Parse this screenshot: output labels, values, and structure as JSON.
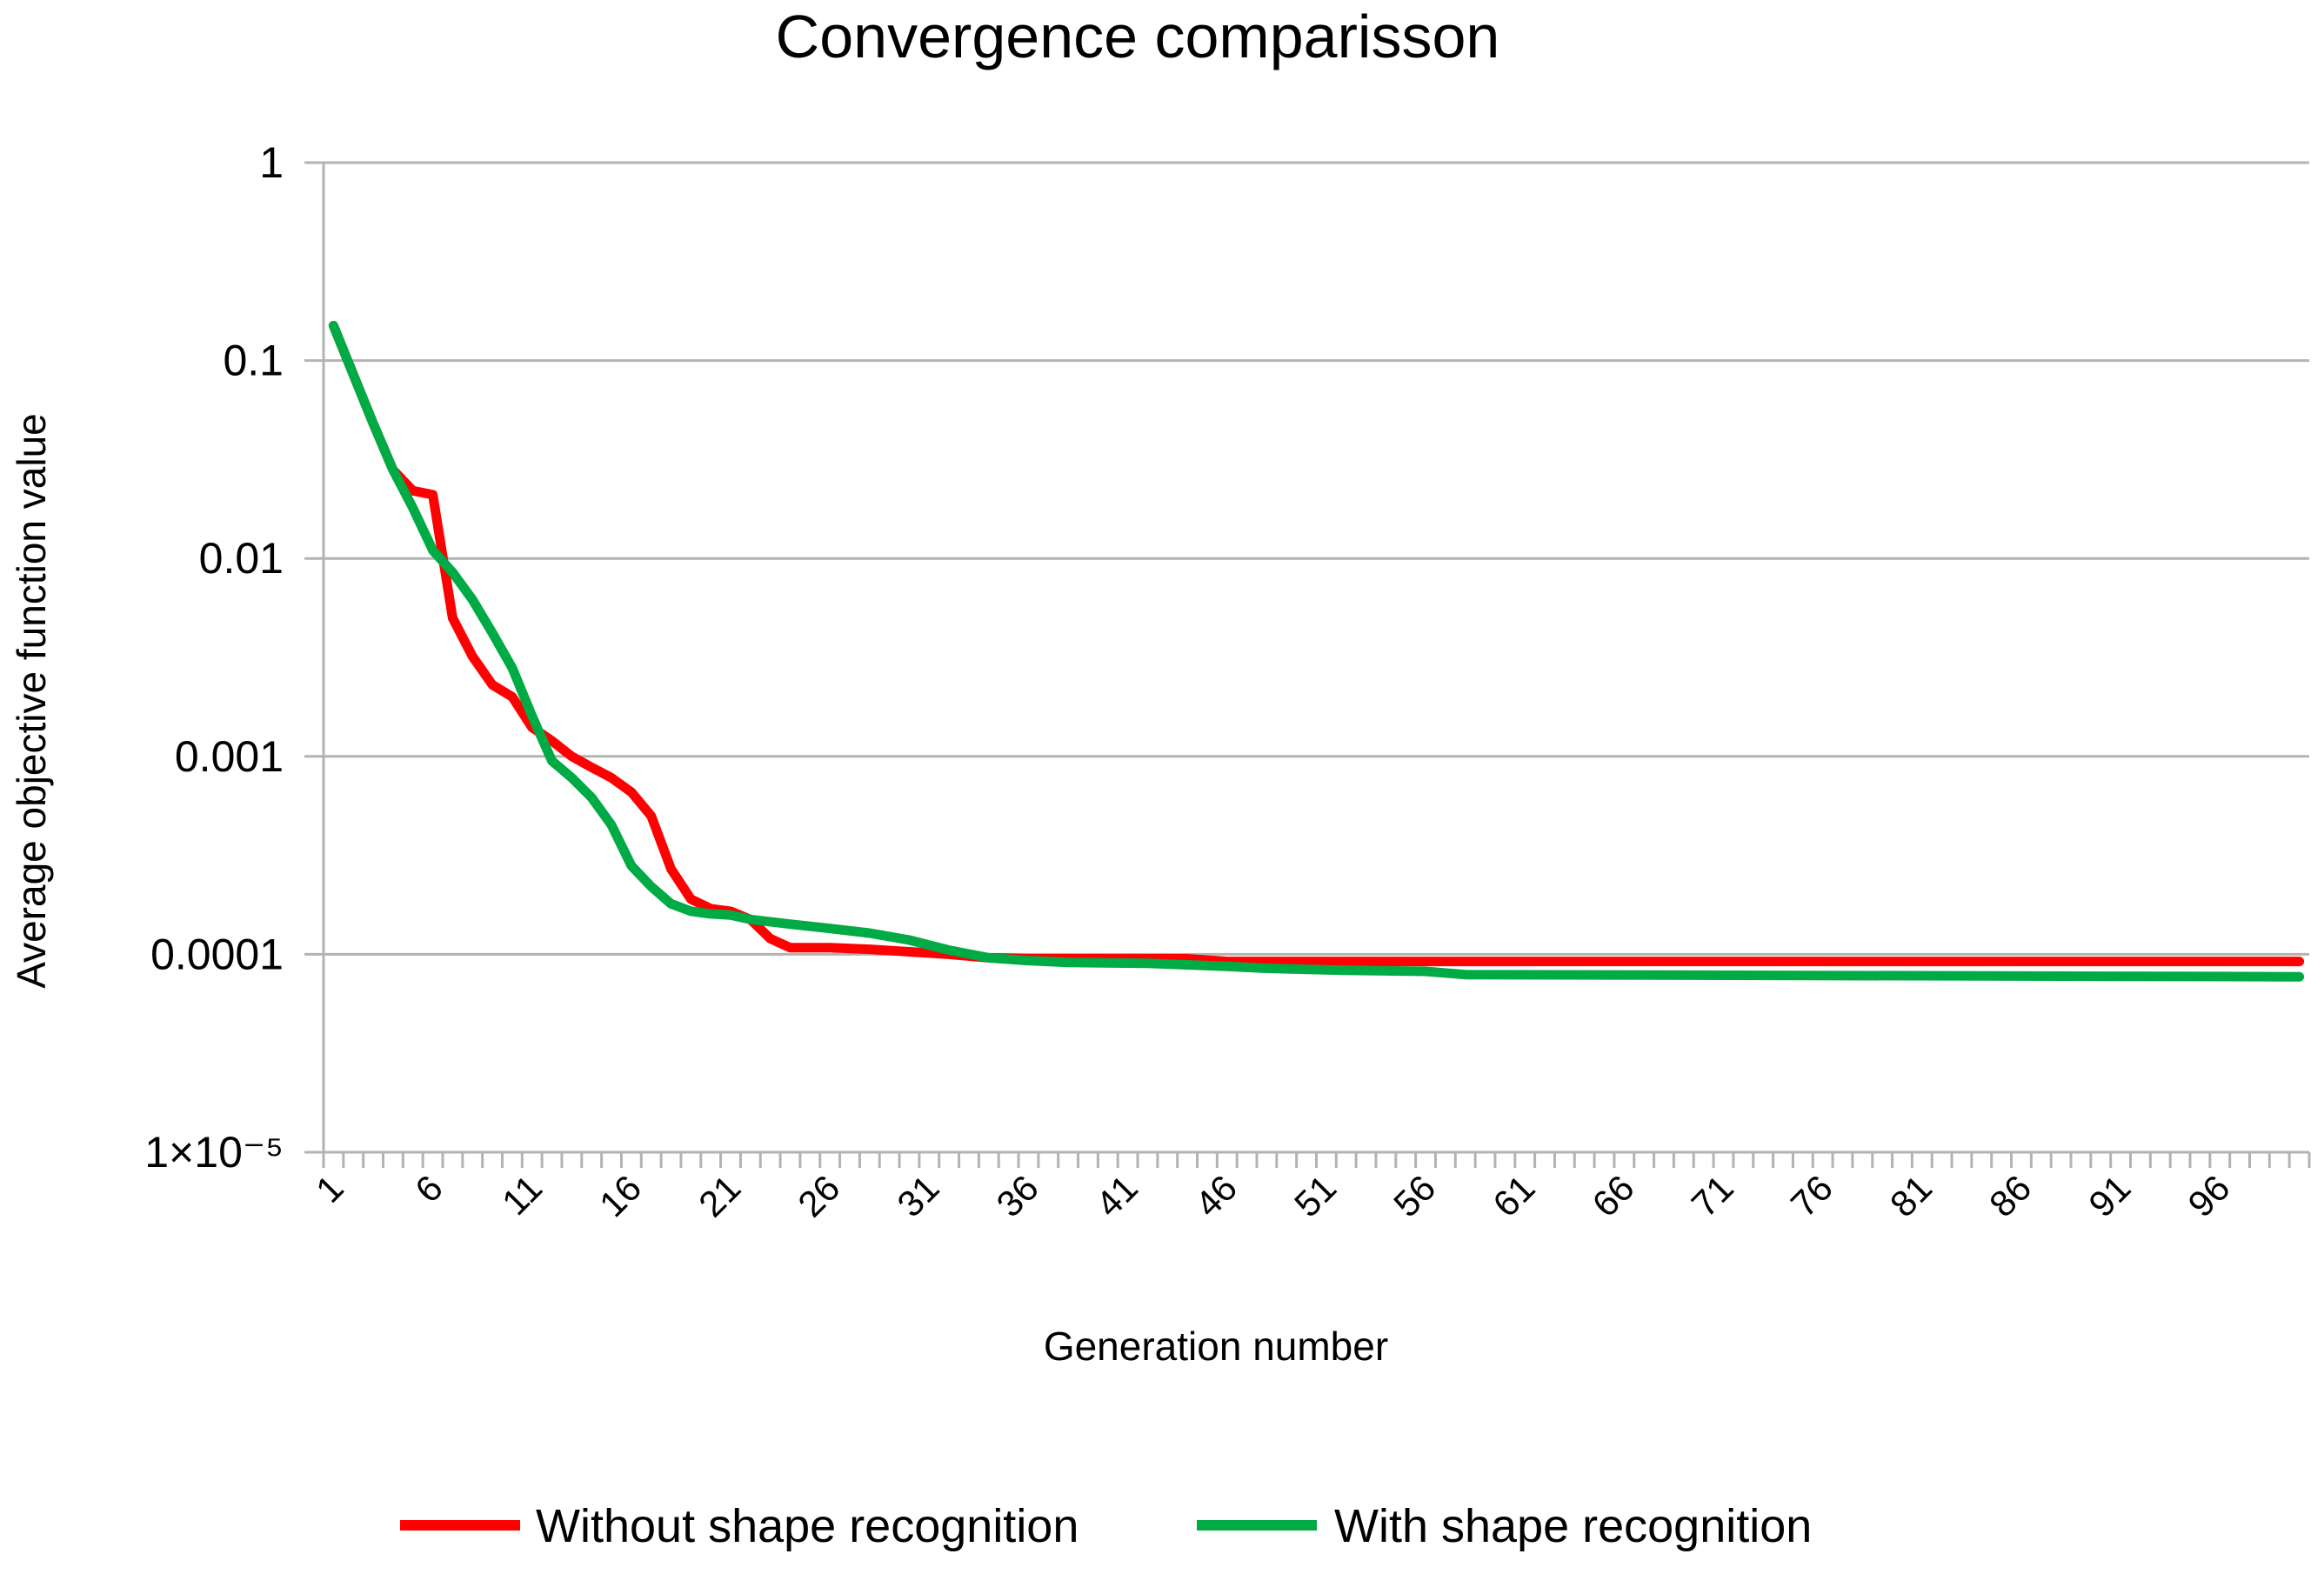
{
  "chart_data": {
    "type": "line",
    "title": "Convergence comparisson",
    "xlabel": "Generation number",
    "ylabel": "Average objective function value",
    "yscale": "log",
    "ylim": [
      1e-05,
      1
    ],
    "xlim": [
      1,
      100
    ],
    "y_ticks": [
      {
        "value": 1,
        "label": "1"
      },
      {
        "value": 0.1,
        "label": "0.1"
      },
      {
        "value": 0.01,
        "label": "0.01"
      },
      {
        "value": 0.001,
        "label": "0.001"
      },
      {
        "value": 0.0001,
        "label": "0.0001"
      },
      {
        "value": 1e-05,
        "label": "1×10⁻⁵"
      }
    ],
    "x_tick_labels": [
      {
        "value": 1,
        "label": "1"
      },
      {
        "value": 6,
        "label": "6"
      },
      {
        "value": 11,
        "label": "11"
      },
      {
        "value": 16,
        "label": "16"
      },
      {
        "value": 21,
        "label": "21"
      },
      {
        "value": 26,
        "label": "26"
      },
      {
        "value": 31,
        "label": "31"
      },
      {
        "value": 36,
        "label": "36"
      },
      {
        "value": 41,
        "label": "41"
      },
      {
        "value": 46,
        "label": "46"
      },
      {
        "value": 51,
        "label": "51"
      },
      {
        "value": 56,
        "label": "56"
      },
      {
        "value": 61,
        "label": "61"
      },
      {
        "value": 66,
        "label": "66"
      },
      {
        "value": 71,
        "label": "71"
      },
      {
        "value": 76,
        "label": "76"
      },
      {
        "value": 81,
        "label": "81"
      },
      {
        "value": 86,
        "label": "86"
      },
      {
        "value": 91,
        "label": "91"
      },
      {
        "value": 96,
        "label": "96"
      }
    ],
    "legend_position": "bottom",
    "series": [
      {
        "name": "Without shape recognition",
        "color": "#ff0000",
        "points": [
          [
            1,
            0.15
          ],
          [
            2,
            0.085
          ],
          [
            3,
            0.048
          ],
          [
            4,
            0.028
          ],
          [
            5,
            0.022
          ],
          [
            6,
            0.021
          ],
          [
            7,
            0.005
          ],
          [
            8,
            0.0032
          ],
          [
            9,
            0.0023
          ],
          [
            10,
            0.002
          ],
          [
            11,
            0.0014
          ],
          [
            12,
            0.0012
          ],
          [
            13,
            0.001
          ],
          [
            14,
            0.00088
          ],
          [
            15,
            0.00078
          ],
          [
            16,
            0.00066
          ],
          [
            17,
            0.0005
          ],
          [
            18,
            0.00027
          ],
          [
            19,
            0.00019
          ],
          [
            20,
            0.00017
          ],
          [
            21,
            0.000165
          ],
          [
            22,
            0.00015
          ],
          [
            23,
            0.00012
          ],
          [
            24,
            0.000108
          ],
          [
            25,
            0.000108
          ],
          [
            26,
            0.000108
          ],
          [
            28,
            0.000106
          ],
          [
            30,
            0.000103
          ],
          [
            32,
            0.0001
          ],
          [
            34,
            9.6e-05
          ],
          [
            36,
            9.5e-05
          ],
          [
            44,
            9.5e-05
          ],
          [
            46,
            9.2e-05
          ],
          [
            100,
            9.2e-05
          ]
        ]
      },
      {
        "name": "With shape recognition",
        "color": "#00aa44",
        "points": [
          [
            1,
            0.15
          ],
          [
            2,
            0.085
          ],
          [
            3,
            0.048
          ],
          [
            4,
            0.028
          ],
          [
            5,
            0.018
          ],
          [
            6,
            0.011
          ],
          [
            7,
            0.0085
          ],
          [
            8,
            0.0062
          ],
          [
            9,
            0.0042
          ],
          [
            10,
            0.0028
          ],
          [
            11,
            0.0016
          ],
          [
            12,
            0.00095
          ],
          [
            13,
            0.00078
          ],
          [
            14,
            0.00062
          ],
          [
            15,
            0.00045
          ],
          [
            16,
            0.00028
          ],
          [
            17,
            0.00022
          ],
          [
            18,
            0.00018
          ],
          [
            19,
            0.000165
          ],
          [
            20,
            0.00016
          ],
          [
            21,
            0.000158
          ],
          [
            22,
            0.00015
          ],
          [
            24,
            0.000142
          ],
          [
            26,
            0.000135
          ],
          [
            28,
            0.000128
          ],
          [
            30,
            0.000118
          ],
          [
            32,
            0.000105
          ],
          [
            34,
            9.6e-05
          ],
          [
            36,
            9.3e-05
          ],
          [
            38,
            9.1e-05
          ],
          [
            42,
            9e-05
          ],
          [
            46,
            8.7e-05
          ],
          [
            48,
            8.5e-05
          ],
          [
            52,
            8.3e-05
          ],
          [
            56,
            8.2e-05
          ],
          [
            58,
            7.9e-05
          ],
          [
            100,
            7.7e-05
          ]
        ]
      }
    ]
  }
}
